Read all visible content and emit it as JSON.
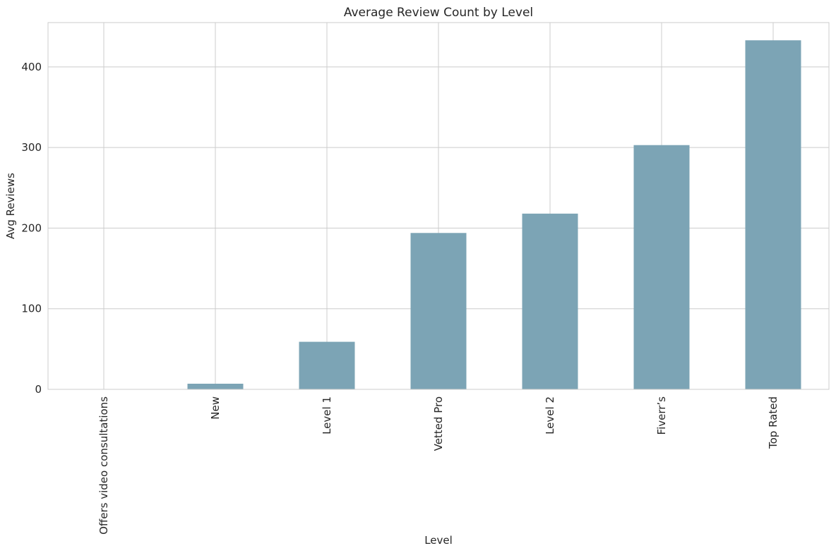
{
  "chart_data": {
    "type": "bar",
    "title": "Average Review Count by Level",
    "xlabel": "Level",
    "ylabel": "Avg Reviews",
    "categories": [
      "Offers video consultations",
      "New",
      "Level 1",
      "Vetted Pro",
      "Level 2",
      "Fiverr's",
      "Top Rated"
    ],
    "category_labels": [
      "Offers video consultations",
      "New",
      "Level 1",
      "Vetted Pro",
      "Level 2",
      "Fiverr’s",
      "Top Rated"
    ],
    "values": [
      0,
      7,
      59,
      194,
      218,
      303,
      433
    ],
    "ylim": [
      0,
      455
    ],
    "yticks": [
      0,
      100,
      200,
      300,
      400
    ],
    "grid": true,
    "bar_color": "#7ca4b5",
    "grid_color": "#cccccc",
    "spine_color": "#cccccc",
    "text_color": "#262626"
  }
}
